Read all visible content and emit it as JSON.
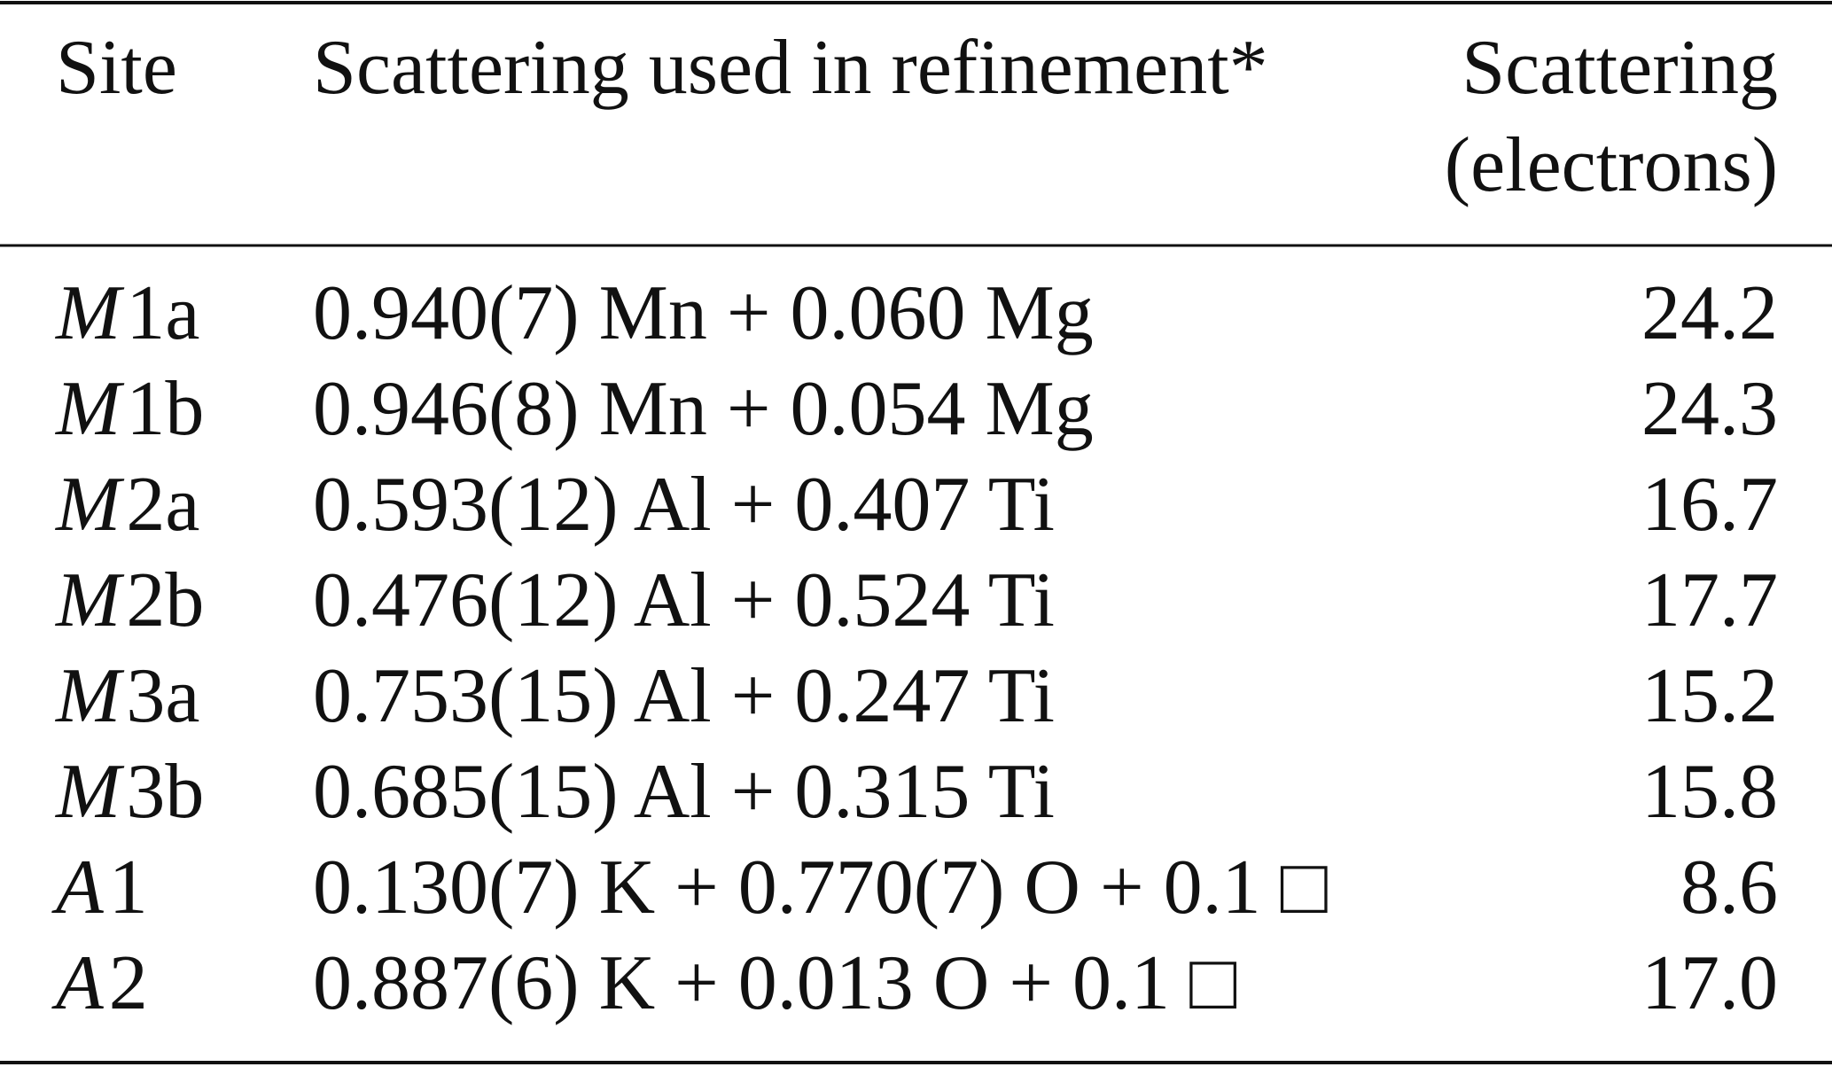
{
  "table": {
    "header": [
      "Site",
      "Scattering used in refinement*",
      [
        "Scattering",
        "(electrons)"
      ]
    ],
    "rows": [
      [
        {
          "symbol": "M",
          "suffix": "1a"
        },
        "0.940(7) Mn + 0.060 Mg",
        "24.2"
      ],
      [
        {
          "symbol": "M",
          "suffix": "1b"
        },
        "0.946(8) Mn + 0.054 Mg",
        "24.3"
      ],
      [
        {
          "symbol": "M",
          "suffix": "2a"
        },
        "0.593(12) Al + 0.407 Ti",
        "16.7"
      ],
      [
        {
          "symbol": "M",
          "suffix": "2b"
        },
        "0.476(12) Al + 0.524 Ti",
        "17.7"
      ],
      [
        {
          "symbol": "M",
          "suffix": "3a"
        },
        "0.753(15) Al + 0.247 Ti",
        "15.2"
      ],
      [
        {
          "symbol": "M",
          "suffix": "3b"
        },
        "0.685(15) Al + 0.315 Ti",
        "15.8"
      ],
      [
        {
          "symbol": "A",
          "suffix": "1"
        },
        "0.130(7) K + 0.770(7) O + 0.1 □",
        "8.6"
      ],
      [
        {
          "symbol": "A",
          "suffix": "2"
        },
        "0.887(6) K + 0.013 O + 0.1 □",
        "17.0"
      ]
    ]
  }
}
